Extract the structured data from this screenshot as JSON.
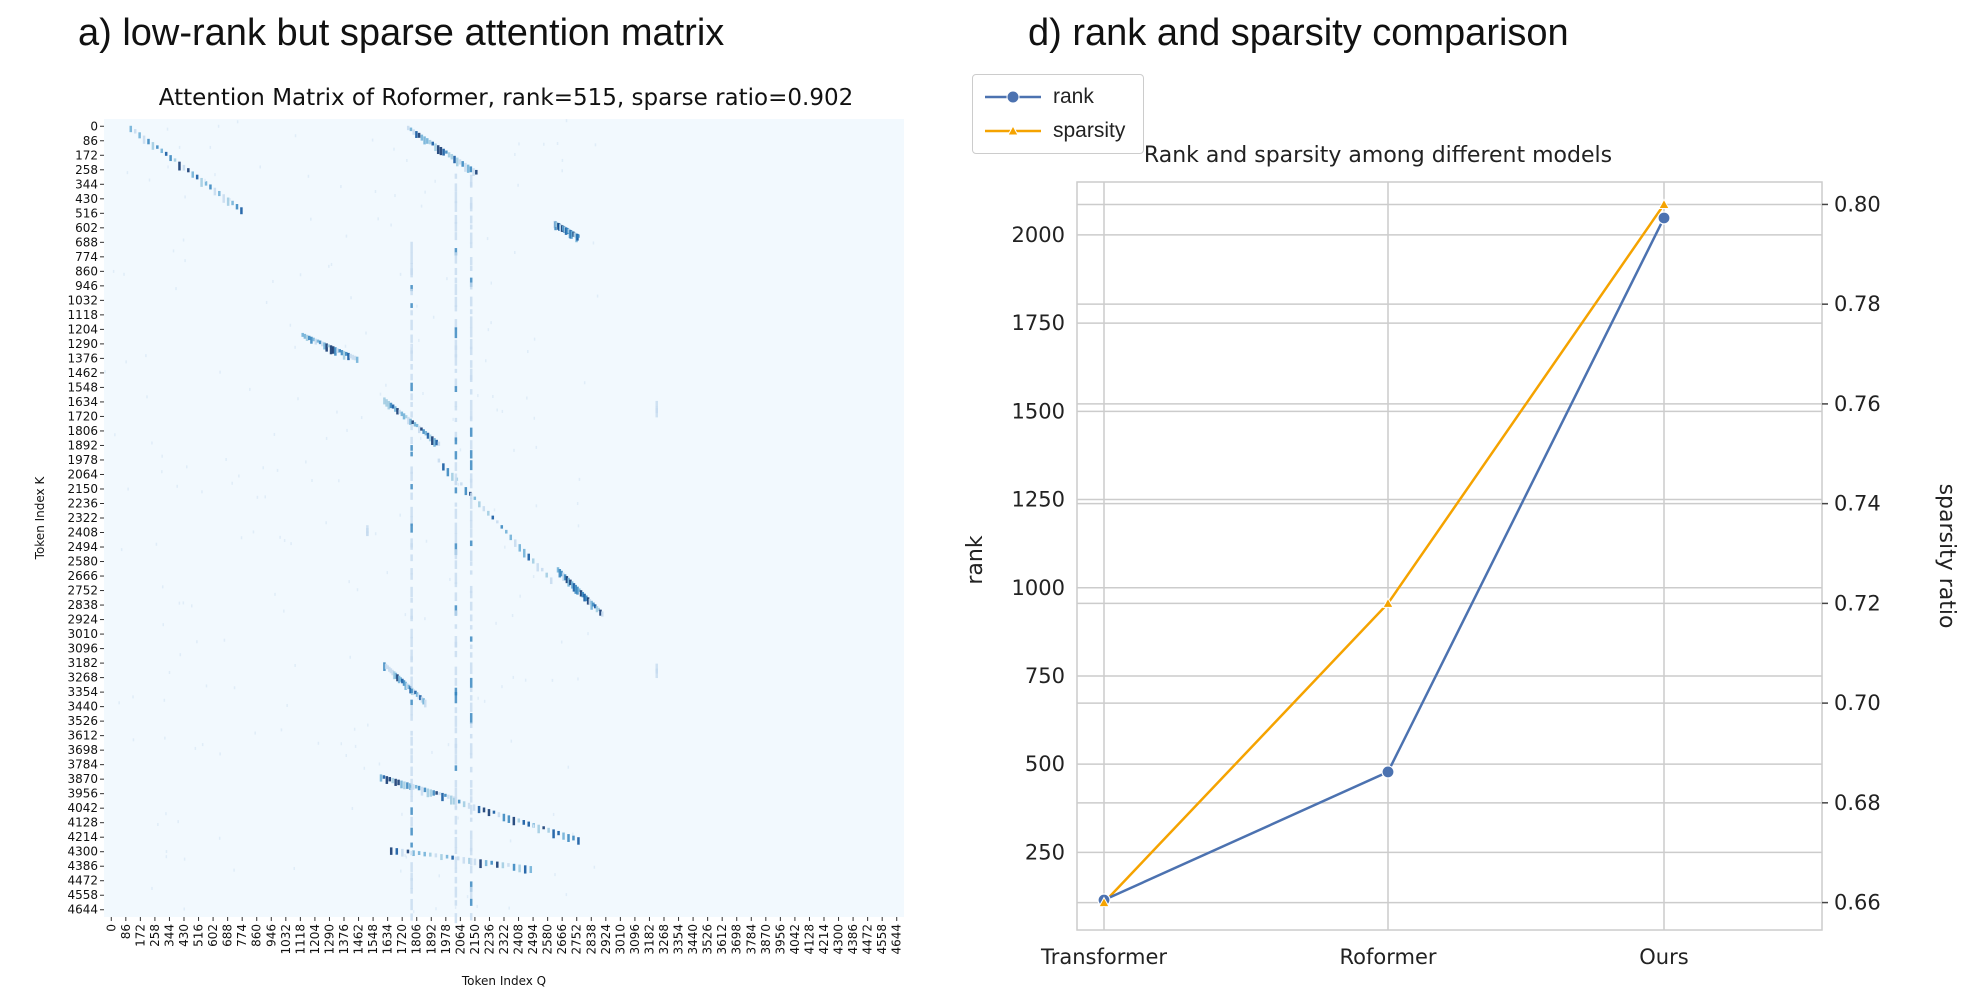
{
  "panels": {
    "a_title": "a) low-rank but sparse attention matrix",
    "d_title": "d) rank and sparsity comparison"
  },
  "chart_data": [
    {
      "type": "heatmap",
      "title": "Attention Matrix of Roformer, rank=515, sparse ratio=0.902",
      "xlabel": "Token Index Q",
      "ylabel": "Token Index K",
      "x_ticks": [
        "0",
        "86",
        "172",
        "258",
        "344",
        "430",
        "516",
        "602",
        "688",
        "774",
        "860",
        "946",
        "1032",
        "1118",
        "1204",
        "1290",
        "1376",
        "1462",
        "1548",
        "1634",
        "1720",
        "1806",
        "1892",
        "1978",
        "2064",
        "2150",
        "2236",
        "2322",
        "2408",
        "2494",
        "2580",
        "2666",
        "2752",
        "2838",
        "2924",
        "3010",
        "3096",
        "3182",
        "3268",
        "3354",
        "3440",
        "3526",
        "3612",
        "3698",
        "3784",
        "3870",
        "3956",
        "4042",
        "4128",
        "4214",
        "4300",
        "4386",
        "4472",
        "4558",
        "4644"
      ],
      "y_ticks": [
        "0",
        "86",
        "172",
        "258",
        "344",
        "430",
        "516",
        "602",
        "688",
        "774",
        "860",
        "946",
        "1032",
        "1118",
        "1204",
        "1290",
        "1376",
        "1462",
        "1548",
        "1634",
        "1720",
        "1806",
        "1892",
        "1978",
        "2064",
        "2150",
        "2236",
        "2322",
        "2408",
        "2494",
        "2580",
        "2666",
        "2752",
        "2838",
        "2924",
        "3010",
        "3096",
        "3182",
        "3268",
        "3354",
        "3440",
        "3526",
        "3612",
        "3698",
        "3784",
        "3870",
        "3956",
        "4042",
        "4128",
        "4214",
        "4300",
        "4386",
        "4472",
        "4558",
        "4644"
      ],
      "range": [
        0,
        4700
      ],
      "diagonal_bands": [
        {
          "q": [
            150,
            800
          ],
          "k": [
            40,
            520
          ]
        },
        {
          "q": [
            1780,
            2180
          ],
          "k": [
            40,
            300
          ]
        },
        {
          "q": [
            1960,
            2620
          ],
          "k": [
            2000,
            2700
          ]
        },
        {
          "q": [
            2660,
            2920
          ],
          "k": [
            2640,
            2900
          ]
        },
        {
          "q": [
            1640,
            1960
          ],
          "k": [
            1640,
            1900
          ]
        },
        {
          "q": [
            2640,
            2780
          ],
          "k": [
            600,
            680
          ]
        },
        {
          "q": [
            1160,
            1480
          ],
          "k": [
            1260,
            1400
          ]
        },
        {
          "q": [
            1640,
            1880
          ],
          "k": [
            3200,
            3420
          ]
        },
        {
          "q": [
            1620,
            2050
          ],
          "k": [
            3860,
            3990
          ]
        },
        {
          "q": [
            2050,
            2780
          ],
          "k": [
            4000,
            4230
          ]
        },
        {
          "q": [
            1680,
            2500
          ],
          "k": [
            4290,
            4400
          ]
        }
      ],
      "vertical_stripes": [
        {
          "q": 1800,
          "k": [
            700,
            4700
          ]
        },
        {
          "q": 2060,
          "k": [
            300,
            4700
          ]
        },
        {
          "q": 2150,
          "k": [
            300,
            4700
          ]
        },
        {
          "q": 1540,
          "k": [
            2380,
            2420
          ]
        },
        {
          "q": 3240,
          "k": [
            1650,
            1690
          ]
        },
        {
          "q": 3240,
          "k": [
            3200,
            3240
          ]
        }
      ]
    },
    {
      "type": "line",
      "title": "Rank and sparsity among different models",
      "categories": [
        "Transformer",
        "Roformer",
        "Ours"
      ],
      "series": [
        {
          "name": "rank",
          "axis": "left",
          "color": "#4c72b0",
          "marker": "circle",
          "values": [
            115,
            478,
            2048
          ]
        },
        {
          "name": "sparsity",
          "axis": "right",
          "color": "#f5a300",
          "marker": "triangle",
          "values": [
            0.66,
            0.72,
            0.8
          ]
        }
      ],
      "ylabel": "rank",
      "y2label": "sparsity ratio",
      "ylim": [
        30,
        2150
      ],
      "y2lim": [
        0.6545,
        0.8045
      ],
      "yticks": [
        250,
        500,
        750,
        1000,
        1250,
        1500,
        1750,
        2000
      ],
      "y2ticks": [
        0.66,
        0.68,
        0.7,
        0.72,
        0.74,
        0.76,
        0.78,
        0.8
      ],
      "ytick_labels": [
        "250",
        "500",
        "750",
        "1000",
        "1250",
        "1500",
        "1750",
        "2000"
      ],
      "y2tick_labels": [
        "0.66",
        "0.68",
        "0.70",
        "0.72",
        "0.74",
        "0.76",
        "0.78",
        "0.80"
      ],
      "legend": "top-left"
    }
  ]
}
